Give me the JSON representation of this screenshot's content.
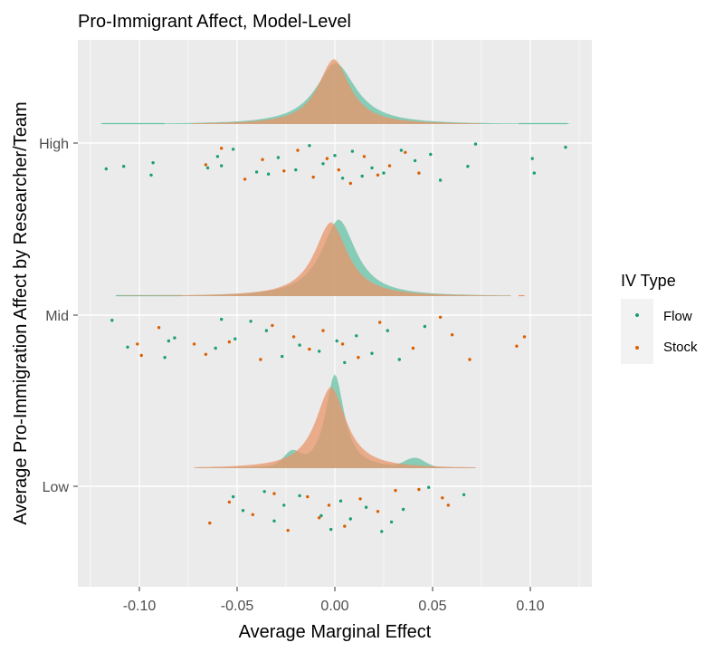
{
  "chart_data": {
    "type": "ridgeline-jitter",
    "title": "Pro-Immigrant Affect, Model-Level",
    "xlabel": "Average Marginal Effect",
    "ylabel": "Average Pro-Immigration Affect by Researcher/Team",
    "xlim": [
      -0.125,
      0.13
    ],
    "x_ticks": [
      -0.1,
      -0.05,
      0.0,
      0.05,
      0.1
    ],
    "x_tick_labels": [
      "-0.10",
      "-0.05",
      "0.00",
      "0.05",
      "0.10"
    ],
    "categories": [
      "High",
      "Mid",
      "Low"
    ],
    "grid": true,
    "legend": {
      "title": "IV Type",
      "position": "right",
      "entries": [
        {
          "name": "Flow",
          "color": "#1b9e77"
        },
        {
          "name": "Stock",
          "color": "#d95f02"
        }
      ]
    },
    "colors": {
      "panel": "#ebebeb",
      "grid": "#ffffff",
      "flow": "#1b9e77",
      "stock": "#d95f02",
      "flow_density": "#66c2a5",
      "stock_density": "#e8956a"
    },
    "series": [
      {
        "name": "Flow",
        "groups": {
          "High": {
            "density_peak": 0.0005,
            "density_range": [
              -0.12,
              0.12
            ],
            "points": [
              [
                -0.117,
                0.5
              ],
              [
                -0.108,
                0.45
              ],
              [
                -0.094,
                0.62
              ],
              [
                -0.093,
                0.38
              ],
              [
                -0.065,
                0.48
              ],
              [
                -0.06,
                0.26
              ],
              [
                -0.058,
                0.44
              ],
              [
                -0.052,
                0.12
              ],
              [
                -0.04,
                0.56
              ],
              [
                -0.034,
                0.6
              ],
              [
                -0.029,
                0.28
              ],
              [
                -0.02,
                0.52
              ],
              [
                -0.013,
                0.05
              ],
              [
                -0.006,
                0.4
              ],
              [
                0.0,
                0.24
              ],
              [
                0.004,
                0.68
              ],
              [
                0.009,
                0.16
              ],
              [
                0.014,
                0.64
              ],
              [
                0.019,
                0.48
              ],
              [
                0.025,
                0.58
              ],
              [
                0.034,
                0.14
              ],
              [
                0.041,
                0.34
              ],
              [
                0.049,
                0.22
              ],
              [
                0.054,
                0.72
              ],
              [
                0.068,
                0.45
              ],
              [
                0.072,
                0.02
              ],
              [
                0.101,
                0.3
              ],
              [
                0.102,
                0.58
              ],
              [
                0.118,
                0.08
              ]
            ]
          },
          "Mid": {
            "density_peak": 0.002,
            "density_range": [
              -0.11,
              0.09
            ],
            "points": [
              [
                -0.114,
                0.1
              ],
              [
                -0.106,
                0.62
              ],
              [
                -0.087,
                0.82
              ],
              [
                -0.085,
                0.5
              ],
              [
                -0.082,
                0.44
              ],
              [
                -0.061,
                0.64
              ],
              [
                -0.058,
                0.08
              ],
              [
                -0.051,
                0.46
              ],
              [
                -0.043,
                0.12
              ],
              [
                -0.035,
                0.3
              ],
              [
                -0.027,
                0.8
              ],
              [
                -0.018,
                0.58
              ],
              [
                -0.008,
                0.7
              ],
              [
                0.001,
                0.5
              ],
              [
                0.005,
                0.92
              ],
              [
                0.011,
                0.4
              ],
              [
                0.019,
                0.74
              ],
              [
                0.027,
                0.3
              ],
              [
                0.033,
                0.86
              ],
              [
                0.046,
                0.22
              ]
            ]
          },
          "Low": {
            "density_peak": 0.0,
            "density_range": [
              -0.07,
              0.072
            ],
            "points": [
              [
                -0.052,
                0.2
              ],
              [
                -0.047,
                0.46
              ],
              [
                -0.036,
                0.1
              ],
              [
                -0.031,
                0.66
              ],
              [
                -0.026,
                0.36
              ],
              [
                -0.018,
                0.18
              ],
              [
                -0.007,
                0.56
              ],
              [
                -0.002,
                0.82
              ],
              [
                0.003,
                0.28
              ],
              [
                0.008,
                0.62
              ],
              [
                0.016,
                0.4
              ],
              [
                0.024,
                0.86
              ],
              [
                0.029,
                0.68
              ],
              [
                0.035,
                0.44
              ],
              [
                0.048,
                0.02
              ],
              [
                0.066,
                0.16
              ]
            ]
          }
        }
      },
      {
        "name": "Stock",
        "groups": {
          "High": {
            "density_peak": -0.0005,
            "density_range": [
              -0.073,
              0.075
            ],
            "points": [
              [
                -0.066,
                0.42
              ],
              [
                -0.058,
                0.1
              ],
              [
                -0.046,
                0.7
              ],
              [
                -0.037,
                0.32
              ],
              [
                -0.026,
                0.54
              ],
              [
                -0.019,
                0.14
              ],
              [
                -0.011,
                0.66
              ],
              [
                -0.004,
                0.3
              ],
              [
                0.002,
                0.52
              ],
              [
                0.008,
                0.78
              ],
              [
                0.015,
                0.26
              ],
              [
                0.022,
                0.62
              ],
              [
                0.028,
                0.44
              ],
              [
                0.036,
                0.18
              ],
              [
                0.043,
                0.58
              ]
            ]
          },
          "Mid": {
            "density_peak": -0.002,
            "density_range": [
              -0.11,
              0.09
            ],
            "points": [
              [
                -0.101,
                0.56
              ],
              [
                -0.099,
                0.78
              ],
              [
                -0.09,
                0.24
              ],
              [
                -0.072,
                0.56
              ],
              [
                -0.066,
                0.76
              ],
              [
                -0.054,
                0.52
              ],
              [
                -0.038,
                0.86
              ],
              [
                -0.032,
                0.2
              ],
              [
                -0.021,
                0.42
              ],
              [
                -0.013,
                0.66
              ],
              [
                -0.006,
                0.3
              ],
              [
                0.004,
                0.56
              ],
              [
                0.012,
                0.82
              ],
              [
                0.023,
                0.14
              ],
              [
                0.04,
                0.64
              ],
              [
                0.054,
                0.04
              ],
              [
                0.06,
                0.38
              ],
              [
                0.069,
                0.86
              ],
              [
                0.093,
                0.6
              ],
              [
                0.097,
                0.42
              ]
            ]
          },
          "Low": {
            "density_peak": -0.002,
            "density_range": [
              -0.072,
              0.072
            ],
            "points": [
              [
                -0.064,
                0.7
              ],
              [
                -0.054,
                0.3
              ],
              [
                -0.042,
                0.54
              ],
              [
                -0.031,
                0.14
              ],
              [
                -0.024,
                0.84
              ],
              [
                -0.014,
                0.2
              ],
              [
                -0.008,
                0.6
              ],
              [
                -0.003,
                0.36
              ],
              [
                0.005,
                0.76
              ],
              [
                0.013,
                0.24
              ],
              [
                0.022,
                0.48
              ],
              [
                0.031,
                0.08
              ],
              [
                0.043,
                0.06
              ],
              [
                0.055,
                0.22
              ],
              [
                0.058,
                0.36
              ]
            ]
          }
        }
      }
    ]
  }
}
